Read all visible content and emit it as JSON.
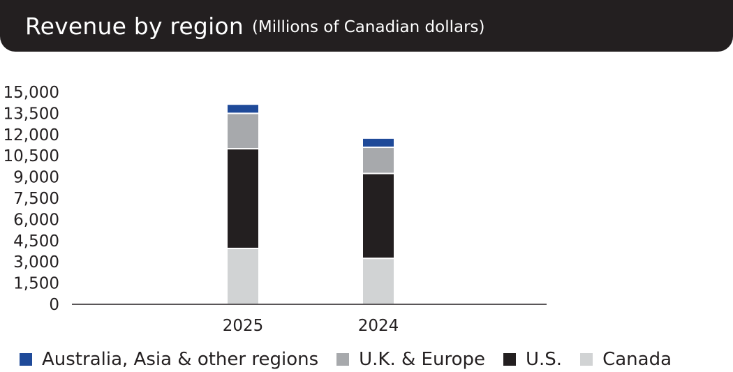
{
  "title": "Revenue by region",
  "subtitle": "(Millions of Canadian dollars)",
  "chart_data": {
    "type": "bar",
    "stacked": true,
    "title": "Revenue by region",
    "subtitle": "(Millions of Canadian dollars)",
    "categories": [
      "2025",
      "2024"
    ],
    "series": [
      {
        "name": "Canada",
        "color": "#d1d3d4",
        "values": [
          3950,
          3250
        ]
      },
      {
        "name": "U.S.",
        "color": "#231f20",
        "values": [
          7050,
          6000
        ]
      },
      {
        "name": "U.K. & Europe",
        "color": "#a7a9ac",
        "values": [
          2500,
          1850
        ]
      },
      {
        "name": "Australia, Asia & other regions",
        "color": "#1f4a99",
        "values": [
          650,
          650
        ]
      }
    ],
    "yticks": [
      "15,000",
      "13,500",
      "12,000",
      "10,500",
      "9,000",
      "7,500",
      "6,000",
      "4,500",
      "3,000",
      "1,500",
      "0"
    ],
    "ylim": [
      0,
      15000
    ],
    "grid": false,
    "legend_position": "bottom"
  },
  "legend": [
    {
      "label": "Australia, Asia & other regions",
      "color": "#1f4a99"
    },
    {
      "label": "U.K. & Europe",
      "color": "#a7a9ac"
    },
    {
      "label": "U.S.",
      "color": "#231f20"
    },
    {
      "label": "Canada",
      "color": "#d1d3d4"
    }
  ]
}
